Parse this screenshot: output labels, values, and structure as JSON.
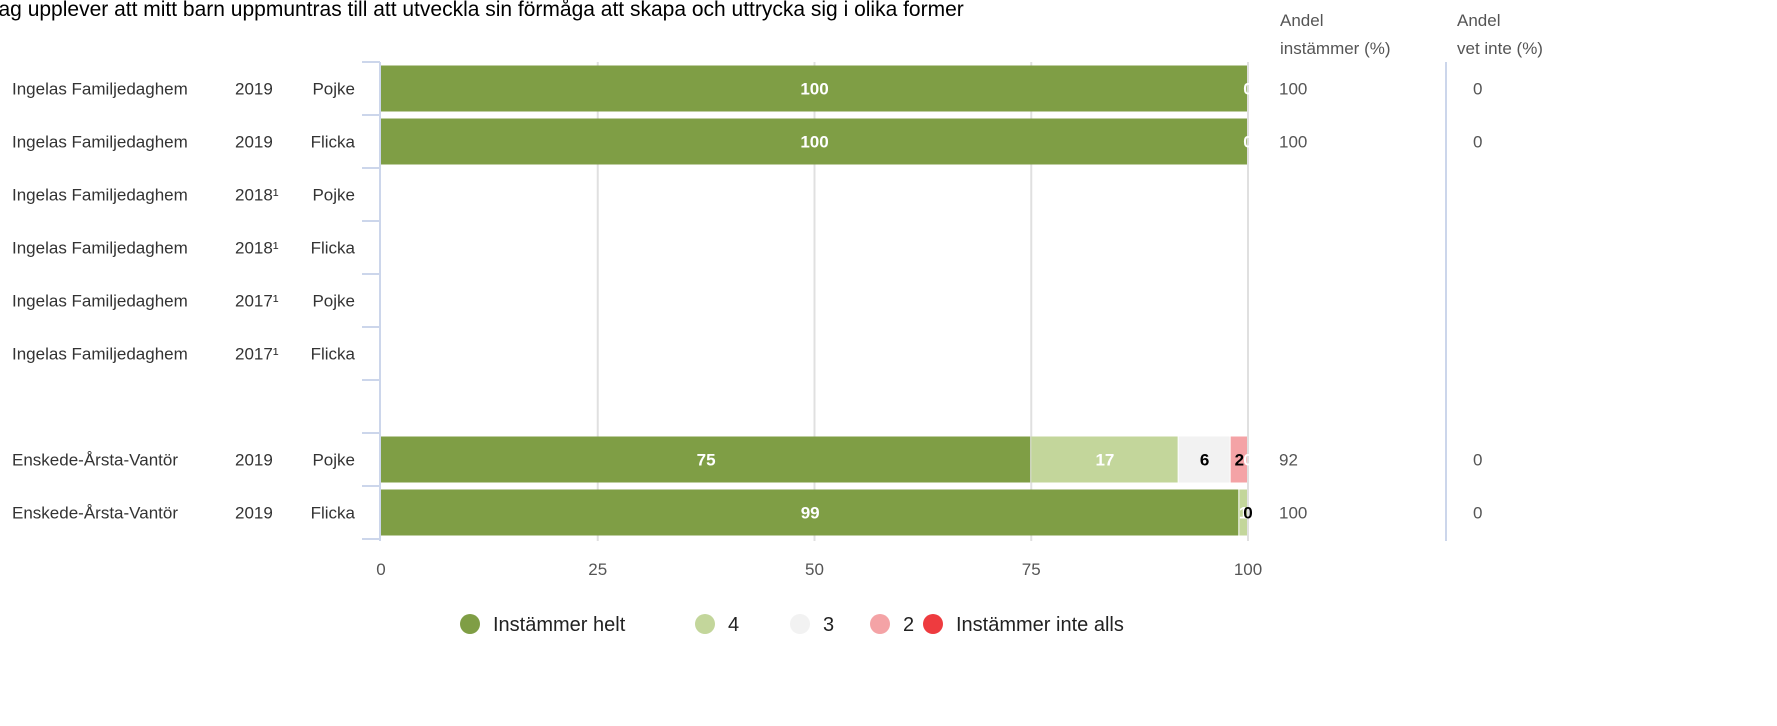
{
  "chart_data": {
    "type": "bar",
    "orientation": "horizontal",
    "stacked": true,
    "title": "Jag upplever att mitt barn uppmuntras till att utveckla sin förmåga att skapa och uttrycka sig i olika former",
    "xlim": [
      0,
      100
    ],
    "xticks": [
      "0",
      "25",
      "50",
      "75",
      "100"
    ],
    "grid": true,
    "legend_position": "bottom",
    "label_columns": {
      "share_agree_header": [
        "Andel",
        "instämmer (%)"
      ],
      "share_dont_know_header": [
        "Andel",
        "vet inte (%)"
      ]
    },
    "series": [
      {
        "name": "Instämmer helt",
        "color": "#7f9e45",
        "label_color": "#ffffff"
      },
      {
        "name": "4",
        "color": "#c3d69b",
        "label_color": "#ffffff"
      },
      {
        "name": "3",
        "color": "#f2f2f2",
        "label_color": "#000000"
      },
      {
        "name": "2",
        "color": "#f4a3a6",
        "label_color": "#000000"
      },
      {
        "name": "Instämmer inte alls",
        "color": "#ee3b3f",
        "label_color": "#ffffff"
      }
    ],
    "rows": [
      {
        "unit": "Ingelas Familjedaghem",
        "year": "2019",
        "gender": "Pojke",
        "values": [
          100,
          0,
          0,
          0,
          0
        ],
        "labels": [
          "100",
          "0",
          "",
          "",
          ""
        ],
        "share_agree": "100",
        "share_dont_know": "0"
      },
      {
        "unit": "Ingelas Familjedaghem",
        "year": "2019",
        "gender": "Flicka",
        "values": [
          100,
          0,
          0,
          0,
          0
        ],
        "labels": [
          "100",
          "0",
          "",
          "",
          ""
        ],
        "share_agree": "100",
        "share_dont_know": "0"
      },
      {
        "unit": "Ingelas Familjedaghem",
        "year": "2018¹",
        "gender": "Pojke",
        "values": [],
        "labels": [],
        "share_agree": "",
        "share_dont_know": ""
      },
      {
        "unit": "Ingelas Familjedaghem",
        "year": "2018¹",
        "gender": "Flicka",
        "values": [],
        "labels": [],
        "share_agree": "",
        "share_dont_know": ""
      },
      {
        "unit": "Ingelas Familjedaghem",
        "year": "2017¹",
        "gender": "Pojke",
        "values": [],
        "labels": [],
        "share_agree": "",
        "share_dont_know": ""
      },
      {
        "unit": "Ingelas Familjedaghem",
        "year": "2017¹",
        "gender": "Flicka",
        "values": [],
        "labels": [],
        "share_agree": "",
        "share_dont_know": ""
      },
      {
        "unit": "",
        "year": "",
        "gender": "",
        "values": [],
        "labels": [],
        "share_agree": "",
        "share_dont_know": ""
      },
      {
        "unit": "Enskede-Årsta-Vantör",
        "year": "2019",
        "gender": "Pojke",
        "values": [
          75,
          17,
          6,
          2,
          0
        ],
        "labels": [
          "75",
          "17",
          "6",
          "2",
          "0"
        ],
        "share_agree": "92",
        "share_dont_know": "0"
      },
      {
        "unit": "Enskede-Årsta-Vantör",
        "year": "2019",
        "gender": "Flicka",
        "values": [
          99,
          1,
          0,
          0,
          0
        ],
        "labels": [
          "99",
          "1",
          "0",
          "",
          ""
        ],
        "share_agree": "100",
        "share_dont_know": "0"
      }
    ]
  }
}
